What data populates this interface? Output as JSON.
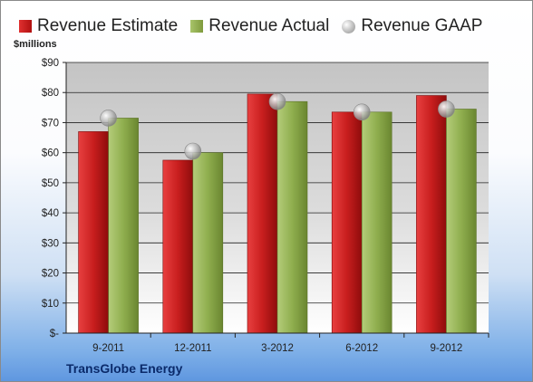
{
  "legend": {
    "estimate": "Revenue Estimate",
    "actual": "Revenue Actual",
    "gaap": "Revenue GAAP"
  },
  "unit_label": "$millions",
  "company": "TransGlobe Energy",
  "colors": {
    "estimate": "#c81e1e",
    "actual": "#8fae4e",
    "gaap": "#b0b0b0"
  },
  "chart_data": {
    "type": "bar",
    "categories": [
      "9-2011",
      "12-2011",
      "3-2012",
      "6-2012",
      "9-2012"
    ],
    "series": [
      {
        "name": "Revenue Estimate",
        "values": [
          67,
          57.5,
          79.5,
          73.5,
          79
        ]
      },
      {
        "name": "Revenue Actual",
        "values": [
          71.5,
          60,
          77,
          73.5,
          74.5
        ]
      },
      {
        "name": "Revenue GAAP",
        "values": [
          71.5,
          60.5,
          77,
          73.5,
          74.5
        ]
      }
    ],
    "yticks": [
      "$-",
      "$10",
      "$20",
      "$30",
      "$40",
      "$50",
      "$60",
      "$70",
      "$80",
      "$90"
    ],
    "ylim": [
      0,
      90
    ],
    "ylabel": "$millions",
    "grid": true,
    "legend_position": "top"
  }
}
